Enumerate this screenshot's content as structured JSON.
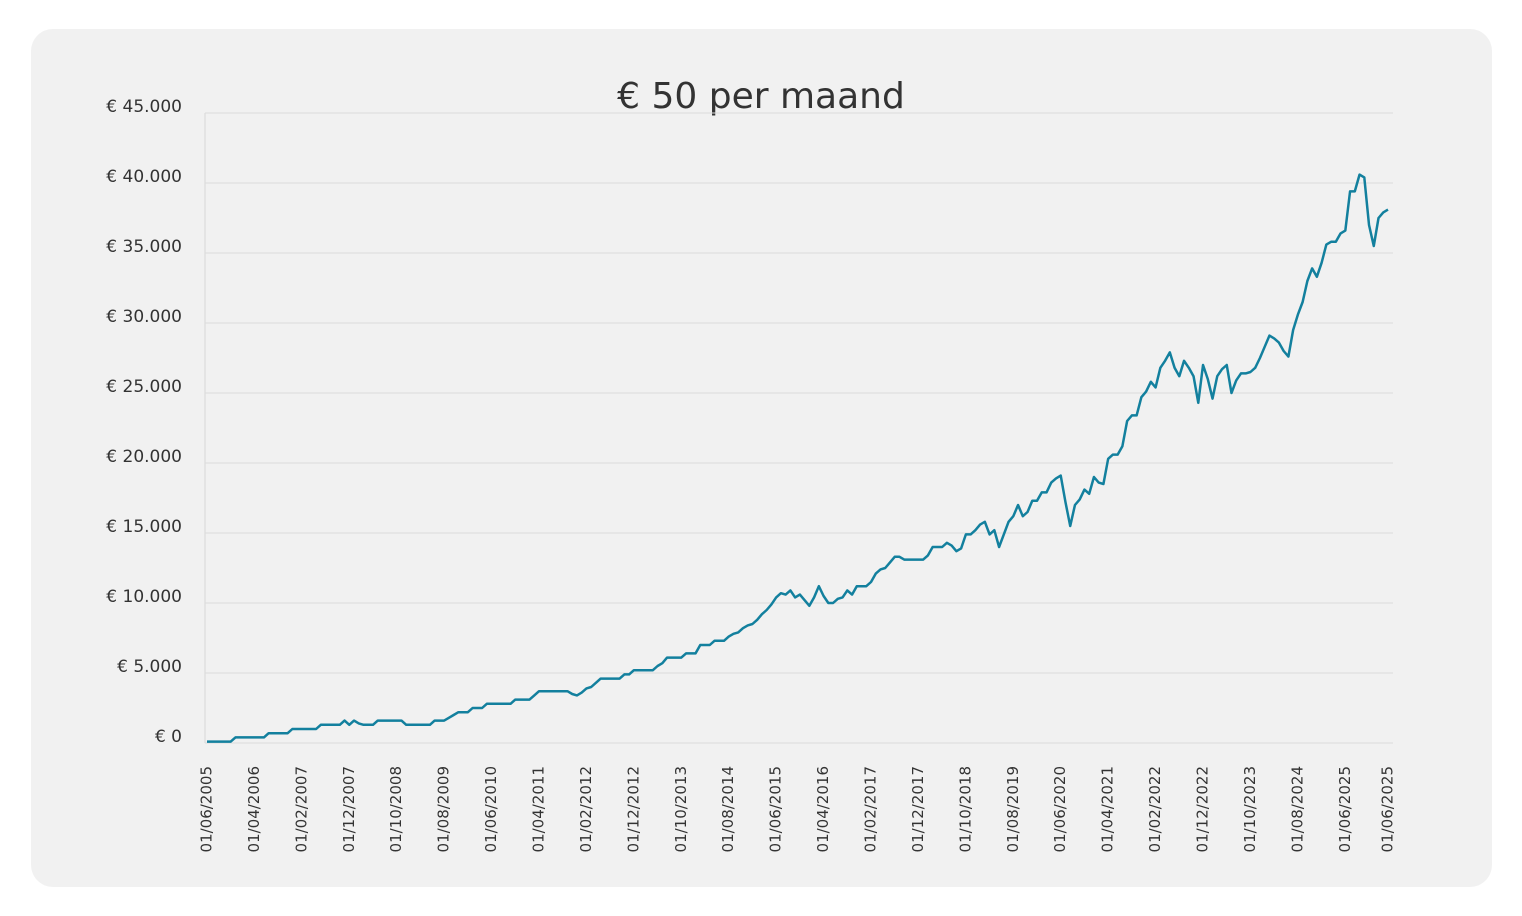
{
  "chart_data": {
    "type": "line",
    "title": "€ 50 per maand",
    "categories": [
      "01/06/2005",
      null,
      null,
      null,
      null,
      null,
      null,
      null,
      null,
      null,
      "01/04/2006",
      null,
      null,
      null,
      null,
      null,
      null,
      null,
      null,
      null,
      "01/02/2007",
      null,
      null,
      null,
      null,
      null,
      null,
      null,
      null,
      null,
      "01/12/2007",
      null,
      null,
      null,
      null,
      null,
      null,
      null,
      null,
      null,
      "01/10/2008",
      null,
      null,
      null,
      null,
      null,
      null,
      null,
      null,
      null,
      "01/08/2009",
      null,
      null,
      null,
      null,
      null,
      null,
      null,
      null,
      null,
      "01/06/2010",
      null,
      null,
      null,
      null,
      null,
      null,
      null,
      null,
      null,
      "01/04/2011",
      null,
      null,
      null,
      null,
      null,
      null,
      null,
      null,
      null,
      "01/02/2012",
      null,
      null,
      null,
      null,
      null,
      null,
      null,
      null,
      null,
      "01/12/2012",
      null,
      null,
      null,
      null,
      null,
      null,
      null,
      null,
      null,
      "01/10/2013",
      null,
      null,
      null,
      null,
      null,
      null,
      null,
      null,
      null,
      "01/08/2014",
      null,
      null,
      null,
      null,
      null,
      null,
      null,
      null,
      null,
      "01/06/2015",
      null,
      null,
      null,
      null,
      null,
      null,
      null,
      null,
      null,
      "01/04/2016",
      null,
      null,
      null,
      null,
      null,
      null,
      null,
      null,
      null,
      "01/02/2017",
      null,
      null,
      null,
      null,
      null,
      null,
      null,
      null,
      null,
      "01/12/2017",
      null,
      null,
      null,
      null,
      null,
      null,
      null,
      null,
      null,
      "01/10/2018",
      null,
      null,
      null,
      null,
      null,
      null,
      null,
      null,
      null,
      "01/08/2019",
      null,
      null,
      null,
      null,
      null,
      null,
      null,
      null,
      null,
      "01/06/2020",
      null,
      null,
      null,
      null,
      null,
      null,
      null,
      null,
      null,
      "01/04/2021",
      null,
      null,
      null,
      null,
      null,
      null,
      null,
      null,
      null,
      "01/02/2022",
      null,
      null,
      null,
      null,
      null,
      null,
      null,
      null,
      null,
      "01/12/2022",
      null,
      null,
      null,
      null,
      null,
      null,
      null,
      null,
      null,
      "01/10/2023",
      null,
      null,
      null,
      null,
      null,
      null,
      null,
      null,
      null,
      "01/08/2024",
      null,
      null,
      null,
      null,
      null,
      null,
      null,
      null,
      null,
      "01/06/2025",
      null,
      null,
      null,
      null,
      null,
      null,
      null,
      null,
      "01/06/2025"
    ],
    "values": [
      100,
      100,
      100,
      100,
      100,
      100,
      400,
      400,
      400,
      400,
      400,
      400,
      400,
      700,
      700,
      700,
      700,
      700,
      1000,
      1000,
      1000,
      1000,
      1000,
      1000,
      1300,
      1300,
      1300,
      1300,
      1300,
      1600,
      1300,
      1600,
      1400,
      1300,
      1300,
      1300,
      1600,
      1600,
      1600,
      1600,
      1600,
      1600,
      1300,
      1300,
      1300,
      1300,
      1300,
      1300,
      1600,
      1600,
      1600,
      1800,
      2000,
      2200,
      2200,
      2200,
      2500,
      2500,
      2500,
      2800,
      2800,
      2800,
      2800,
      2800,
      2800,
      3100,
      3100,
      3100,
      3100,
      3400,
      3700,
      3700,
      3700,
      3700,
      3700,
      3700,
      3700,
      3500,
      3400,
      3600,
      3900,
      4000,
      4300,
      4600,
      4600,
      4600,
      4600,
      4600,
      4900,
      4900,
      5200,
      5200,
      5200,
      5200,
      5200,
      5500,
      5700,
      6100,
      6100,
      6100,
      6100,
      6400,
      6400,
      6400,
      7000,
      7000,
      7000,
      7300,
      7300,
      7300,
      7600,
      7800,
      7900,
      8200,
      8400,
      8500,
      8800,
      9200,
      9500,
      9900,
      10400,
      10700,
      10600,
      10900,
      10400,
      10600,
      10200,
      9800,
      10400,
      11200,
      10500,
      10000,
      10000,
      10300,
      10400,
      10900,
      10600,
      11200,
      11200,
      11200,
      11500,
      12100,
      12400,
      12500,
      12900,
      13300,
      13300,
      13100,
      13100,
      13100,
      13100,
      13100,
      13400,
      14000,
      14000,
      14000,
      14300,
      14100,
      13700,
      13900,
      14900,
      14900,
      15200,
      15600,
      15800,
      14900,
      15200,
      14000,
      14900,
      15800,
      16200,
      17000,
      16200,
      16500,
      17300,
      17300,
      17900,
      17900,
      18600,
      18900,
      19100,
      17200,
      15500,
      17000,
      17400,
      18100,
      17800,
      19000,
      18600,
      18500,
      20300,
      20600,
      20600,
      21200,
      23000,
      23400,
      23400,
      24700,
      25100,
      25800,
      25400,
      26800,
      27300,
      27900,
      26800,
      26200,
      27300,
      26800,
      26200,
      24300,
      27000,
      26000,
      24600,
      26200,
      26700,
      27000,
      25000,
      25900,
      26400,
      26400,
      26500,
      26800,
      27500,
      28300,
      29100,
      28900,
      28600,
      28000,
      27600,
      29500,
      30600,
      31500,
      33000,
      33900,
      33300,
      34300,
      35600,
      35800,
      35800,
      36400,
      36600,
      39400,
      39400,
      40600,
      40400,
      37000,
      35500,
      37500,
      37900,
      38100
    ],
    "color": "#13809e",
    "ylim": [
      0,
      45000
    ],
    "yticks": [
      {
        "value": 0,
        "label": "€ 0"
      },
      {
        "value": 5000,
        "label": "€ 5.000"
      },
      {
        "value": 10000,
        "label": "€ 10.000"
      },
      {
        "value": 15000,
        "label": "€ 15.000"
      },
      {
        "value": 20000,
        "label": "€ 20.000"
      },
      {
        "value": 25000,
        "label": "€ 25.000"
      },
      {
        "value": 30000,
        "label": "€ 30.000"
      },
      {
        "value": 35000,
        "label": "€ 35.000"
      },
      {
        "value": 40000,
        "label": "€ 40.000"
      },
      {
        "value": 45000,
        "label": "€ 45.000"
      }
    ],
    "grid": true
  }
}
